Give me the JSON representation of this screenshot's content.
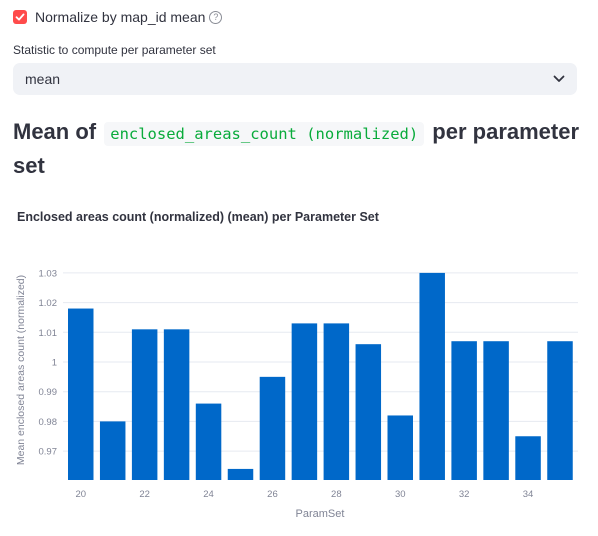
{
  "checkbox": {
    "label": "Normalize by map_id mean",
    "checked": true,
    "help_icon": "question-circle-icon"
  },
  "select": {
    "label": "Statistic to compute per parameter set",
    "value": "mean",
    "chevron_icon": "chevron-down-icon"
  },
  "heading": {
    "prefix": "Mean of ",
    "code": "enclosed_areas_count (normalized)",
    "suffix": " per parameter set"
  },
  "colors": {
    "accent": "#ff4b4b",
    "bar": "#0068c9",
    "code": "#09ab3b"
  },
  "chart_data": {
    "type": "bar",
    "title": "Enclosed areas count (normalized) (mean) per Parameter Set",
    "xlabel": "ParamSet",
    "ylabel": "Mean enclosed areas count (normalized)",
    "x": [
      20,
      21,
      22,
      23,
      24,
      25,
      26,
      27,
      28,
      29,
      30,
      31,
      32,
      33,
      34,
      35
    ],
    "values": [
      1.018,
      0.98,
      1.011,
      1.011,
      0.986,
      0.964,
      0.995,
      1.013,
      1.013,
      1.006,
      0.982,
      1.03,
      1.007,
      1.007,
      0.975,
      1.007
    ],
    "xticks": [
      "20",
      "22",
      "24",
      "26",
      "28",
      "30",
      "32",
      "34"
    ],
    "yticks": [
      "0.97",
      "0.98",
      "0.99",
      "1",
      "1.01",
      "1.02",
      "1.03"
    ],
    "ylim": [
      0.96,
      1.03
    ],
    "grid": true
  }
}
